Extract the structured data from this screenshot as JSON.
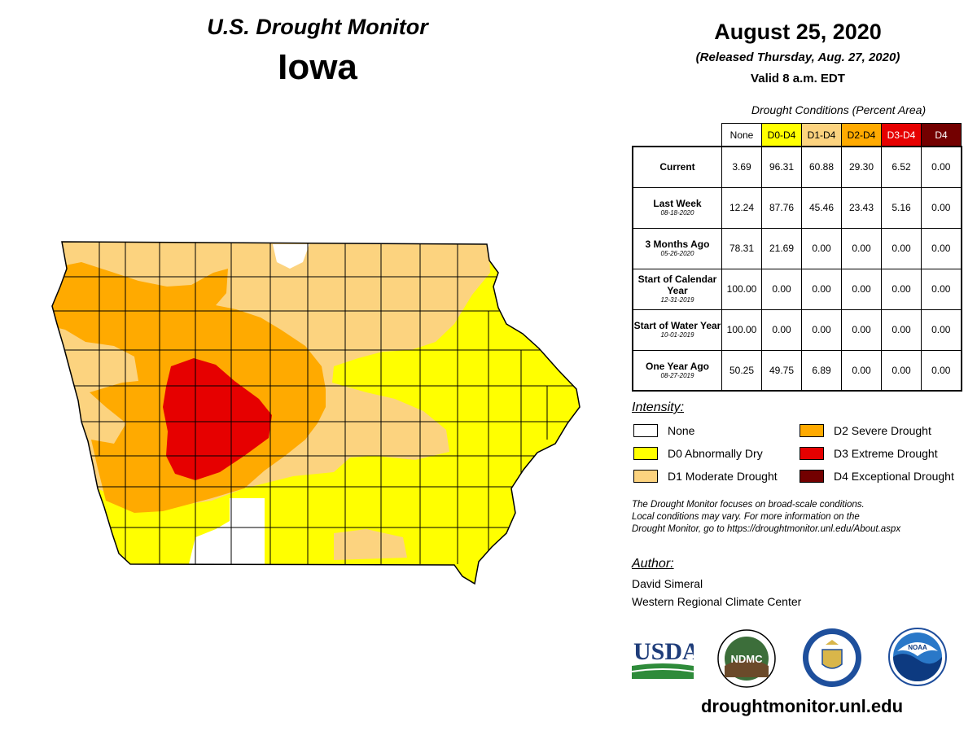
{
  "header": {
    "title": "U.S. Drought Monitor",
    "state": "Iowa",
    "date": "August 25, 2020",
    "released": "(Released Thursday, Aug. 27, 2020)",
    "valid": "Valid 8 a.m. EDT"
  },
  "table": {
    "caption": "Drought Conditions (Percent Area)",
    "columns": [
      "None",
      "D0-D4",
      "D1-D4",
      "D2-D4",
      "D3-D4",
      "D4"
    ],
    "column_colors": [
      "#ffffff",
      "#ffff00",
      "#fcd37f",
      "#ffaa00",
      "#e60000",
      "#730000"
    ],
    "rows": [
      {
        "label": "Current",
        "sublabel": "",
        "values": [
          "3.69",
          "96.31",
          "60.88",
          "29.30",
          "6.52",
          "0.00"
        ]
      },
      {
        "label": "Last Week",
        "sublabel": "08-18-2020",
        "values": [
          "12.24",
          "87.76",
          "45.46",
          "23.43",
          "5.16",
          "0.00"
        ]
      },
      {
        "label": "3 Months Ago",
        "sublabel": "05-26-2020",
        "values": [
          "78.31",
          "21.69",
          "0.00",
          "0.00",
          "0.00",
          "0.00"
        ]
      },
      {
        "label": "Start of Calendar Year",
        "sublabel": "12-31-2019",
        "values": [
          "100.00",
          "0.00",
          "0.00",
          "0.00",
          "0.00",
          "0.00"
        ]
      },
      {
        "label": "Start of Water Year",
        "sublabel": "10-01-2019",
        "values": [
          "100.00",
          "0.00",
          "0.00",
          "0.00",
          "0.00",
          "0.00"
        ]
      },
      {
        "label": "One Year Ago",
        "sublabel": "08-27-2019",
        "values": [
          "50.25",
          "49.75",
          "6.89",
          "0.00",
          "0.00",
          "0.00"
        ]
      }
    ]
  },
  "legend": {
    "heading": "Intensity:",
    "items": [
      {
        "label": "None",
        "color": "#ffffff"
      },
      {
        "label": "D0 Abnormally Dry",
        "color": "#ffff00"
      },
      {
        "label": "D1 Moderate Drought",
        "color": "#fcd37f"
      },
      {
        "label": "D2 Severe Drought",
        "color": "#ffaa00"
      },
      {
        "label": "D3 Extreme Drought",
        "color": "#e60000"
      },
      {
        "label": "D4 Exceptional Drought",
        "color": "#730000"
      }
    ]
  },
  "note": {
    "line1": "The Drought Monitor focuses on broad-scale conditions.",
    "line2": "Local conditions may vary. For more information on the",
    "line3": "Drought Monitor, go to https://droughtmonitor.unl.edu/About.aspx"
  },
  "author": {
    "heading": "Author:",
    "name": "David Simeral",
    "org": "Western Regional Climate Center"
  },
  "logos": {
    "usda": "USDA",
    "ndmc": "NDMC",
    "noaa": "NOAA"
  },
  "footer": {
    "site": "droughtmonitor.unl.edu"
  }
}
